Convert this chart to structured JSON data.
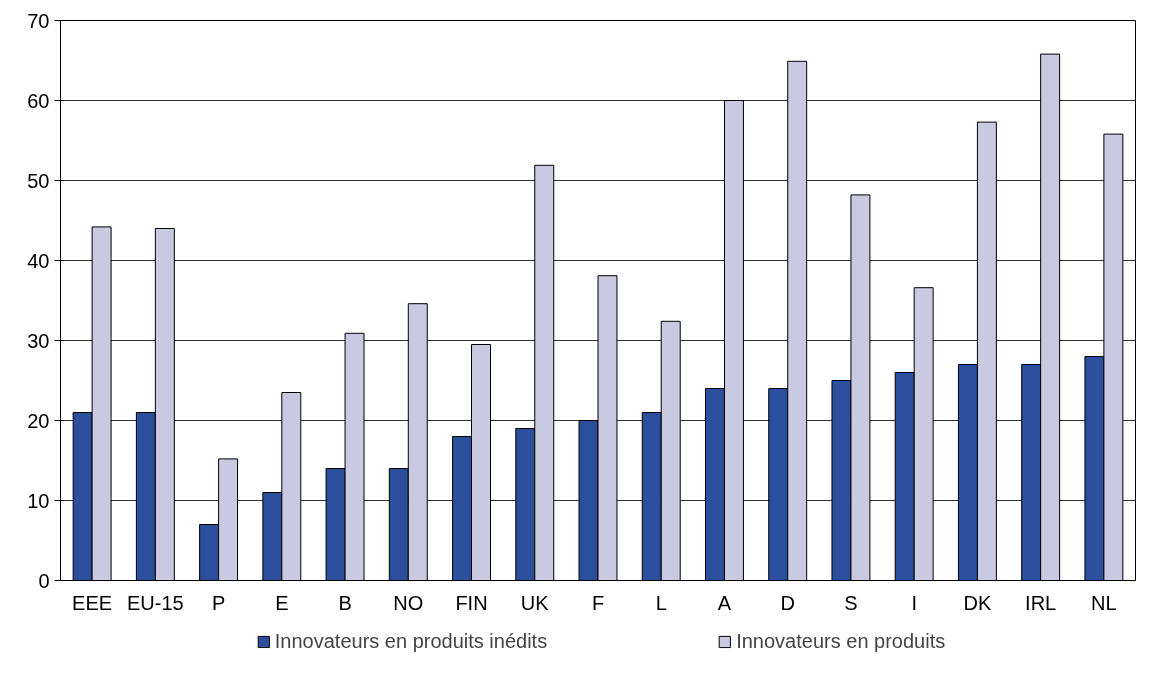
{
  "chart_data": {
    "type": "bar",
    "categories": [
      "EEE",
      "EU-15",
      "P",
      "E",
      "B",
      "NO",
      "FIN",
      "UK",
      "F",
      "L",
      "A",
      "D",
      "S",
      "I",
      "DK",
      "IRL",
      "NL"
    ],
    "series": [
      {
        "name": "Innovateurs en produits inédits",
        "color": "#2b4f9c",
        "values": [
          21,
          21,
          7,
          11,
          14,
          14,
          18,
          19,
          20,
          21,
          24,
          24,
          25,
          26,
          27,
          27,
          28
        ]
      },
      {
        "name": "Innovateurs en produits",
        "color": "#c9c9e1",
        "values": [
          44.2,
          44.0,
          15.2,
          23.5,
          30.9,
          34.6,
          29.5,
          51.9,
          38.1,
          32.4,
          60.0,
          64.9,
          48.2,
          36.6,
          57.3,
          65.8,
          55.8
        ]
      }
    ],
    "ylim": [
      0,
      70
    ],
    "yticks": [
      0,
      10,
      20,
      30,
      40,
      50,
      60,
      70
    ],
    "grid": "y",
    "legend": "bottom"
  }
}
